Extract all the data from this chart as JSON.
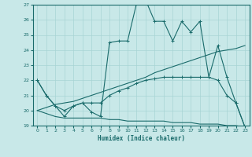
{
  "xlabel": "Humidex (Indice chaleur)",
  "ylabel": "",
  "background_color": "#c8e8e8",
  "grid_color": "#a8d4d4",
  "line_color": "#1a6b6b",
  "xlim": [
    -0.5,
    23.5
  ],
  "ylim": [
    19,
    27
  ],
  "xticks": [
    0,
    1,
    2,
    3,
    4,
    5,
    6,
    7,
    8,
    9,
    10,
    11,
    12,
    13,
    14,
    15,
    16,
    17,
    18,
    19,
    20,
    21,
    22,
    23
  ],
  "yticks": [
    19,
    20,
    21,
    22,
    23,
    24,
    25,
    26,
    27
  ],
  "line1_x": [
    0,
    1,
    2,
    3,
    4,
    5,
    6,
    7,
    8,
    9,
    10,
    11,
    12,
    13,
    14,
    15,
    16,
    17,
    18,
    19,
    20,
    21,
    22,
    23
  ],
  "line1_y": [
    22.0,
    21.0,
    20.3,
    19.6,
    20.3,
    20.5,
    19.9,
    19.6,
    24.5,
    24.6,
    24.6,
    27.1,
    27.3,
    25.9,
    25.9,
    24.6,
    25.9,
    25.2,
    25.9,
    22.2,
    24.3,
    22.2,
    20.5,
    18.9
  ],
  "line2_x": [
    0,
    1,
    2,
    3,
    4,
    5,
    6,
    7,
    8,
    9,
    10,
    11,
    12,
    13,
    14,
    15,
    16,
    17,
    18,
    19,
    20,
    21,
    22,
    23
  ],
  "line2_y": [
    20.0,
    20.2,
    20.4,
    20.5,
    20.6,
    20.8,
    21.0,
    21.2,
    21.4,
    21.6,
    21.8,
    22.0,
    22.2,
    22.5,
    22.7,
    22.9,
    23.1,
    23.3,
    23.5,
    23.7,
    23.9,
    24.0,
    24.1,
    24.3
  ],
  "line3_x": [
    0,
    1,
    2,
    3,
    4,
    5,
    6,
    7,
    8,
    9,
    10,
    11,
    12,
    13,
    14,
    15,
    16,
    17,
    18,
    19,
    20,
    21,
    22,
    23
  ],
  "line3_y": [
    20.0,
    19.8,
    19.6,
    19.5,
    19.5,
    19.5,
    19.5,
    19.5,
    19.4,
    19.4,
    19.3,
    19.3,
    19.3,
    19.3,
    19.3,
    19.2,
    19.2,
    19.2,
    19.1,
    19.1,
    19.1,
    19.0,
    19.0,
    18.9
  ],
  "line4_x": [
    0,
    1,
    2,
    3,
    4,
    5,
    6,
    7,
    8,
    9,
    10,
    11,
    12,
    13,
    14,
    15,
    16,
    17,
    18,
    19,
    20,
    21,
    22,
    23
  ],
  "line4_y": [
    22.0,
    21.0,
    20.3,
    20.0,
    20.3,
    20.5,
    20.5,
    20.5,
    21.0,
    21.3,
    21.5,
    21.8,
    22.0,
    22.1,
    22.2,
    22.2,
    22.2,
    22.2,
    22.2,
    22.2,
    22.0,
    21.0,
    20.5,
    18.9
  ]
}
